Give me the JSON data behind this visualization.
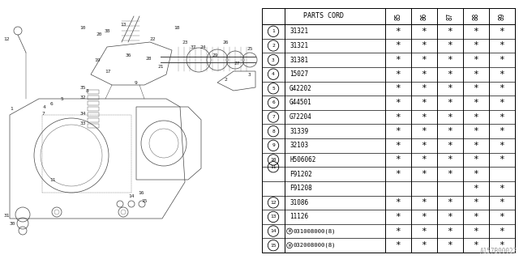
{
  "part_number_label": "A157B00022",
  "years": [
    "85",
    "86",
    "87",
    "88",
    "89"
  ],
  "rows": [
    {
      "num": "1",
      "code": "31321",
      "marks": [
        true,
        true,
        true,
        true,
        true
      ]
    },
    {
      "num": "2",
      "code": "31321",
      "marks": [
        true,
        true,
        true,
        true,
        true
      ]
    },
    {
      "num": "3",
      "code": "31381",
      "marks": [
        true,
        true,
        true,
        true,
        true
      ]
    },
    {
      "num": "4",
      "code": "15027",
      "marks": [
        true,
        true,
        true,
        true,
        true
      ]
    },
    {
      "num": "5",
      "code": "G42202",
      "marks": [
        true,
        true,
        true,
        true,
        true
      ]
    },
    {
      "num": "6",
      "code": "G44501",
      "marks": [
        true,
        true,
        true,
        true,
        true
      ]
    },
    {
      "num": "7",
      "code": "G72204",
      "marks": [
        true,
        true,
        true,
        true,
        true
      ]
    },
    {
      "num": "8",
      "code": "31339",
      "marks": [
        true,
        true,
        true,
        true,
        true
      ]
    },
    {
      "num": "9",
      "code": "32103",
      "marks": [
        true,
        true,
        true,
        true,
        true
      ]
    },
    {
      "num": "10",
      "code": "H506062",
      "marks": [
        true,
        true,
        true,
        true,
        true
      ]
    },
    {
      "num": "11",
      "code": "F91202",
      "marks": [
        true,
        true,
        true,
        true,
        false
      ],
      "sub": true
    },
    {
      "num": "",
      "code": "F91208",
      "marks": [
        false,
        false,
        false,
        true,
        true
      ],
      "sub": true
    },
    {
      "num": "12",
      "code": "31086",
      "marks": [
        true,
        true,
        true,
        true,
        true
      ]
    },
    {
      "num": "13",
      "code": "11126",
      "marks": [
        true,
        true,
        true,
        true,
        true
      ]
    },
    {
      "num": "14",
      "code": "W031008000(8)",
      "marks": [
        true,
        true,
        true,
        true,
        true
      ]
    },
    {
      "num": "15",
      "code": "W032008000(8)",
      "marks": [
        true,
        true,
        true,
        true,
        true
      ]
    }
  ],
  "bg_color": "#ffffff",
  "line_color": "#000000",
  "text_color": "#000000"
}
